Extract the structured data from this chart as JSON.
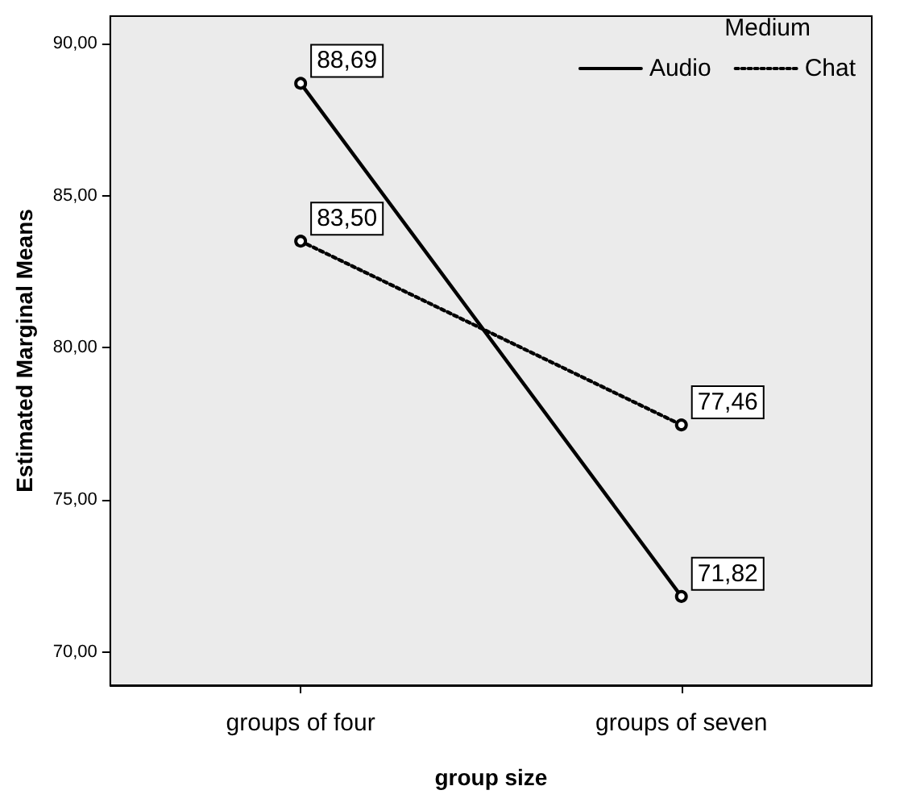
{
  "chart_data": {
    "type": "line",
    "xlabel": "group size",
    "ylabel": "Estimated Marginal Means",
    "legend_title": "Medium",
    "categories": [
      "groups of four",
      "groups of seven"
    ],
    "series": [
      {
        "name": "Audio",
        "color": "#000000",
        "values": [
          88.69,
          71.82
        ],
        "value_labels": [
          "88,69",
          "71,82"
        ],
        "line_style": "solid"
      },
      {
        "name": "Chat",
        "color": "#000000",
        "values": [
          83.5,
          77.46
        ],
        "value_labels": [
          "83,50",
          "77,46"
        ],
        "line_style": "dotted"
      }
    ],
    "ylim": [
      68.9,
      90.9
    ],
    "yticks": [
      {
        "value": 70,
        "label": "70,00"
      },
      {
        "value": 75,
        "label": "75,00"
      },
      {
        "value": 80,
        "label": "80,00"
      },
      {
        "value": 85,
        "label": "85,00"
      },
      {
        "value": 90,
        "label": "90,00"
      }
    ],
    "grid": false,
    "legend": "top right",
    "marker": "circle"
  }
}
